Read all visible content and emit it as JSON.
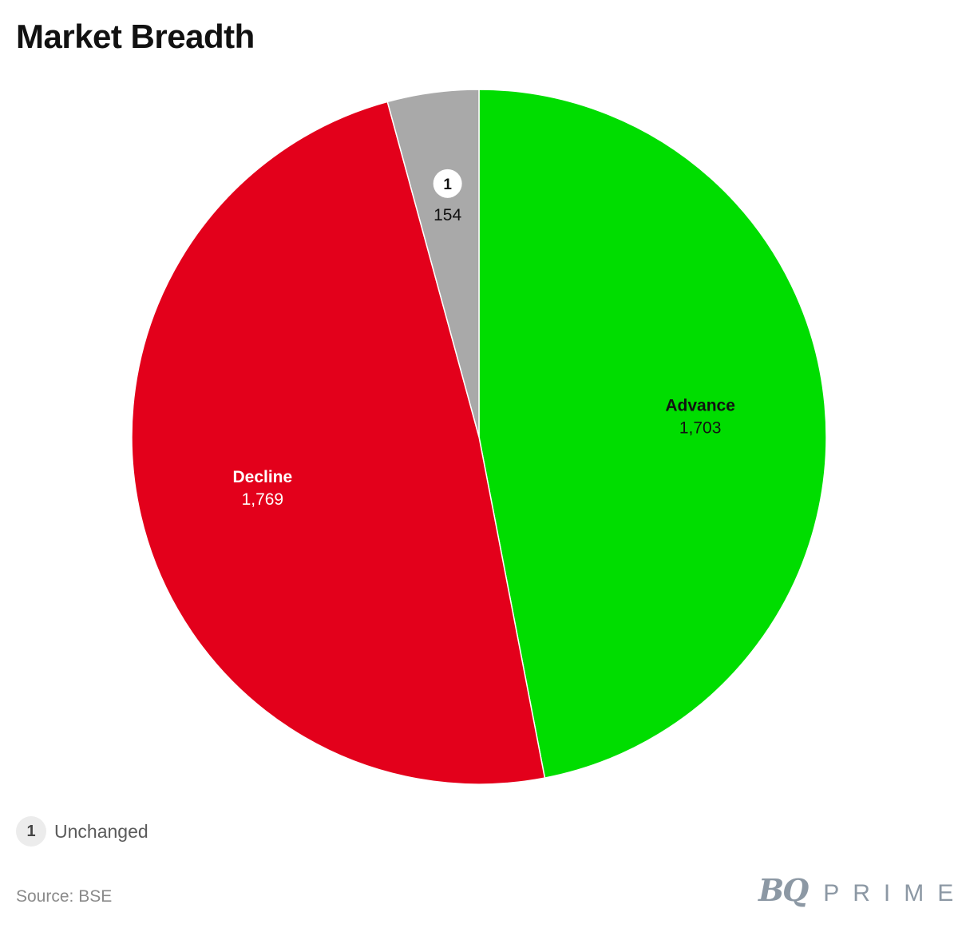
{
  "header": {
    "title": "Market Breadth"
  },
  "chart_data": {
    "type": "pie",
    "title": "Market Breadth",
    "slices": [
      {
        "label": "Advance",
        "value": 1703,
        "value_label": "1,703",
        "color": "#00dd00",
        "label_color": "#111111",
        "show_label": true
      },
      {
        "label": "Decline",
        "value": 1769,
        "value_label": "1,769",
        "color": "#e3001b",
        "label_color": "#ffffff",
        "show_label": true
      },
      {
        "label": "Unchanged",
        "value": 154,
        "value_label": "154",
        "color": "#a9a9a9",
        "label_color": "#111111",
        "show_label": false,
        "marker": "1"
      }
    ],
    "start_angle_deg": 0,
    "direction": "clockwise"
  },
  "footnote": {
    "marker": "1",
    "text": "Unchanged"
  },
  "source": {
    "text": "Source: BSE"
  },
  "brand": {
    "bq": "BQ",
    "prime": "PRIME"
  }
}
